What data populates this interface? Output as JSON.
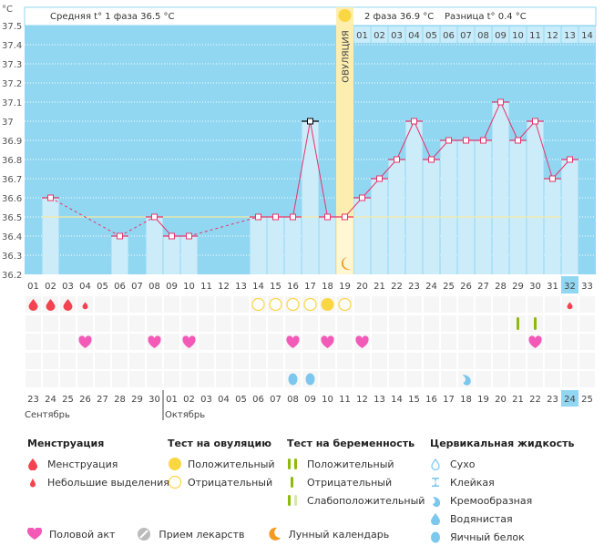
{
  "header": {
    "unit_label": "°C",
    "phase1_text": "Средняя t° 1 фаза",
    "phase1_value": "36.5 °C",
    "phase2_text": "2 фаза",
    "phase2_value": "36.9 °C",
    "diff_text": "Разница t°",
    "diff_value": "0.4 °C",
    "ovulation_label": "ОВУЛЯЦИЯ"
  },
  "colors": {
    "chart_bg": "#92d7f2",
    "bar_fill": "#ccecfa",
    "line": "#e8336b",
    "coverline": "#f5eaa0",
    "ovulation_band": "#fdeeb0",
    "sun": "#fbd643",
    "moon": "#f39a1f",
    "blood": "#f2434f",
    "heart": "#f35ab8",
    "preg_test": "#8dba0a",
    "mucus": "#7cc7ee",
    "red_date": "#e8336b",
    "today_bg": "#92d7f2"
  },
  "chart_data": {
    "type": "line",
    "title": "Basal body temperature chart",
    "ylabel": "°C",
    "ylim": [
      36.2,
      37.5
    ],
    "yticks": [
      "36.2",
      "36.3",
      "36.4",
      "36.5",
      "36.6",
      "36.7",
      "36.8",
      "36.9",
      "37",
      "37.1",
      "37.2",
      "37.3",
      "37.4",
      "37.5"
    ],
    "cycle_days": [
      "01",
      "02",
      "03",
      "04",
      "05",
      "06",
      "07",
      "08",
      "09",
      "10",
      "11",
      "12",
      "13",
      "14",
      "15",
      "16",
      "17",
      "18",
      "19",
      "20",
      "21",
      "22",
      "23",
      "24",
      "25",
      "26",
      "27",
      "28",
      "29",
      "30",
      "31",
      "32",
      "33"
    ],
    "phase2_days": [
      "01",
      "02",
      "03",
      "04",
      "05",
      "06",
      "07",
      "08",
      "09",
      "10",
      "11",
      "12",
      "13",
      "14"
    ],
    "phase2_start_cycle_day": 20,
    "temperatures": [
      null,
      36.6,
      null,
      null,
      null,
      36.4,
      null,
      36.5,
      36.4,
      36.4,
      null,
      null,
      null,
      36.5,
      36.5,
      36.5,
      37.0,
      36.5,
      36.5,
      36.6,
      36.7,
      36.8,
      37.0,
      36.8,
      36.9,
      36.9,
      36.9,
      37.1,
      36.9,
      37.0,
      36.7,
      36.8,
      null
    ],
    "coverline": 36.5,
    "ovulation_day": 19,
    "current_cycle_day": 32,
    "highlighted_day": 17,
    "calendar_dates": [
      "23",
      "24",
      "25",
      "26",
      "27",
      "28",
      "29",
      "30",
      "01",
      "02",
      "03",
      "04",
      "05",
      "06",
      "07",
      "08",
      "09",
      "10",
      "11",
      "12",
      "13",
      "14",
      "15",
      "16",
      "17",
      "18",
      "19",
      "20",
      "21",
      "22",
      "23",
      "24",
      "25"
    ],
    "weekend_dates_index": [
      3,
      4,
      10,
      11,
      17,
      18,
      24,
      25,
      32
    ],
    "months": [
      {
        "label": "Сентябрь",
        "start_index": 0
      },
      {
        "label": "Октябрь",
        "start_index": 8
      }
    ],
    "markers": {
      "menstruation": [
        1,
        2,
        3
      ],
      "spotting": [
        4,
        32
      ],
      "ovulation_test_negative": [
        14,
        15,
        16,
        17,
        19
      ],
      "ovulation_test_positive": [
        18
      ],
      "pregnancy_test_negative": [
        29,
        30
      ],
      "intercourse": [
        4,
        8,
        10,
        16,
        18,
        20,
        30
      ],
      "mucus_egg_white": [
        16,
        17
      ],
      "mucus_creamy": [
        26
      ],
      "moon": [
        19
      ]
    }
  },
  "legend": {
    "menstruation": {
      "title": "Менструация",
      "items": [
        "Менструация",
        "Небольшие выделения"
      ]
    },
    "ovulation_test": {
      "title": "Тест на овуляцию",
      "items": [
        "Положительный",
        "Отрицательный"
      ]
    },
    "pregnancy_test": {
      "title": "Тест на беременность",
      "items": [
        "Положительный",
        "Отрицательный",
        "Слабоположительный"
      ]
    },
    "cervical_fluid": {
      "title": "Цервикальная жидкость",
      "items": [
        "Сухо",
        "Клейкая",
        "Кремообразная",
        "Водянистая",
        "Яичный белок"
      ]
    },
    "other": [
      "Половой акт",
      "Прием лекарств",
      "Лунный календарь"
    ]
  }
}
